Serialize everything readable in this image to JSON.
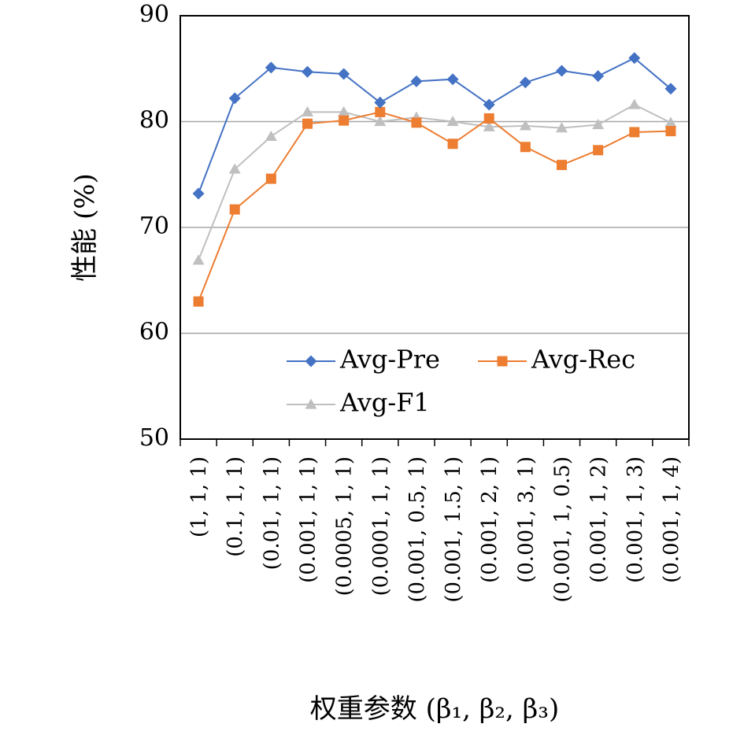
{
  "chart_data": {
    "type": "line",
    "ylabel": "性能 (%)",
    "xlabel": "权重参数 (β₁, β₂, β₃)",
    "ylim": [
      50,
      90
    ],
    "yticks": [
      50,
      60,
      70,
      80,
      90
    ],
    "grid": "horizontal",
    "legend": "bottom-right",
    "categories": [
      "(1, 1, 1)",
      "(0.1, 1, 1)",
      "(0.01, 1, 1)",
      "(0.001, 1, 1)",
      "(0.0005, 1, 1)",
      "(0.0001, 1, 1)",
      "(0.001, 0.5, 1)",
      "(0.001, 1.5, 1)",
      "(0.001, 2, 1)",
      "(0.001, 3, 1)",
      "(0.001, 1, 0.5)",
      "(0.001, 1, 2)",
      "(0.001, 1, 3)",
      "(0.001, 1, 4)"
    ],
    "series": [
      {
        "name": "Avg-Pre",
        "color": "#4472C4",
        "marker": "diamond",
        "values": [
          73.2,
          82.2,
          85.1,
          84.7,
          84.5,
          81.8,
          83.8,
          84.0,
          81.6,
          83.7,
          84.8,
          84.3,
          86.0,
          83.1
        ]
      },
      {
        "name": "Avg-Rec",
        "color": "#ED7D31",
        "marker": "square",
        "values": [
          63.0,
          71.7,
          74.6,
          79.8,
          80.1,
          80.9,
          79.9,
          77.9,
          80.3,
          77.6,
          75.9,
          77.3,
          79.0,
          79.1
        ]
      },
      {
        "name": "Avg-F1",
        "color": "#BFBFBF",
        "marker": "triangle",
        "values": [
          66.9,
          75.5,
          78.6,
          80.9,
          80.9,
          80.0,
          80.4,
          80.0,
          79.5,
          79.6,
          79.4,
          79.7,
          81.6,
          79.9
        ]
      }
    ]
  }
}
